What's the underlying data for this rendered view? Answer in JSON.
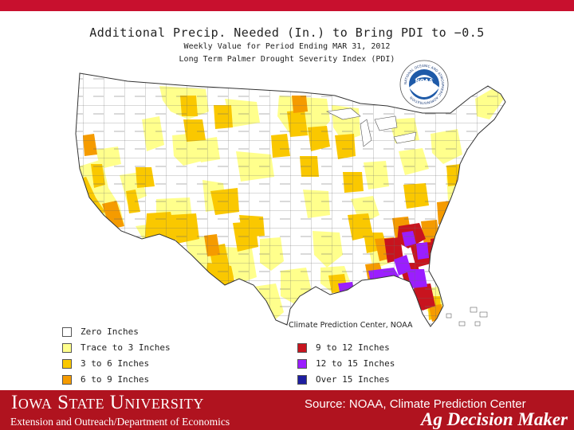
{
  "slide": {
    "accent_color": "#c8102e",
    "footer_color": "#b0131f"
  },
  "map": {
    "title": "Additional Precip. Needed (In.) to Bring PDI to −0.5",
    "subtitle_1": "Weekly Value for Period Ending MAR 31, 2012",
    "subtitle_2": "Long Term Palmer Drought Severity Index (PDI)",
    "logo_text": "NOAA",
    "logo_ring_text": "NATIONAL OCEANIC AND ATMOSPHERIC ADMINISTRATION",
    "credit": "Climate Prediction Center, NOAA"
  },
  "legend": {
    "left": [
      {
        "label": "Zero Inches",
        "color": "#ffffff"
      },
      {
        "label": "Trace to 3 Inches",
        "color": "#ffff8c"
      },
      {
        "label": "3 to 6 Inches",
        "color": "#fac800"
      },
      {
        "label": "6 to 9 Inches",
        "color": "#f59b00"
      }
    ],
    "right": [
      {
        "label": "9 to 12 Inches",
        "color": "#c8141e"
      },
      {
        "label": "12 to 15 Inches",
        "color": "#9b1eff"
      },
      {
        "label": "Over 15 Inches",
        "color": "#1e1ea0"
      }
    ]
  },
  "footer": {
    "university": "Iowa State University",
    "department": "Extension and Outreach/Department of Economics",
    "source": "Source: NOAA, Climate Prediction Center",
    "program": "Ag Decision Maker"
  }
}
